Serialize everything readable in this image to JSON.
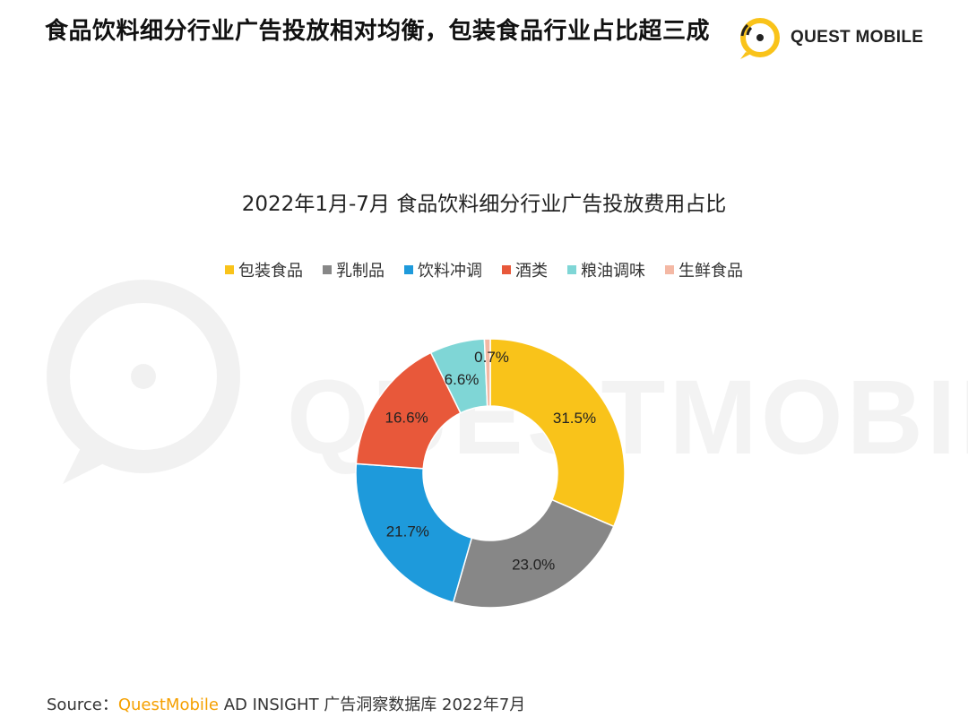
{
  "header": {
    "title": "食品饮料细分行业广告投放相对均衡，包装食品行业占比超三成",
    "brand": "QUEST MOBILE"
  },
  "watermark": "QUESTMOBILE",
  "chart_data": {
    "type": "pie",
    "title": "2022年1月-7月 食品饮料细分行业广告投放费用占比",
    "categories": [
      "包装食品",
      "乳制品",
      "饮料冲调",
      "酒类",
      "粮油调味",
      "生鲜食品"
    ],
    "values": [
      31.5,
      23.0,
      21.7,
      16.6,
      6.6,
      0.7
    ],
    "labels": [
      "31.5%",
      "23.0%",
      "21.7%",
      "16.6%",
      "6.6%",
      "0.7%"
    ],
    "colors": [
      "#F9C31A",
      "#878787",
      "#1E9ADB",
      "#E8583A",
      "#7FD6D6",
      "#F4B8A4"
    ],
    "legend_position": "top",
    "donut": true
  },
  "footer": {
    "source_prefix": "Source：",
    "source_brand": "QuestMobile",
    "source_rest": " AD INSIGHT 广告洞察数据库 2022年7月"
  }
}
